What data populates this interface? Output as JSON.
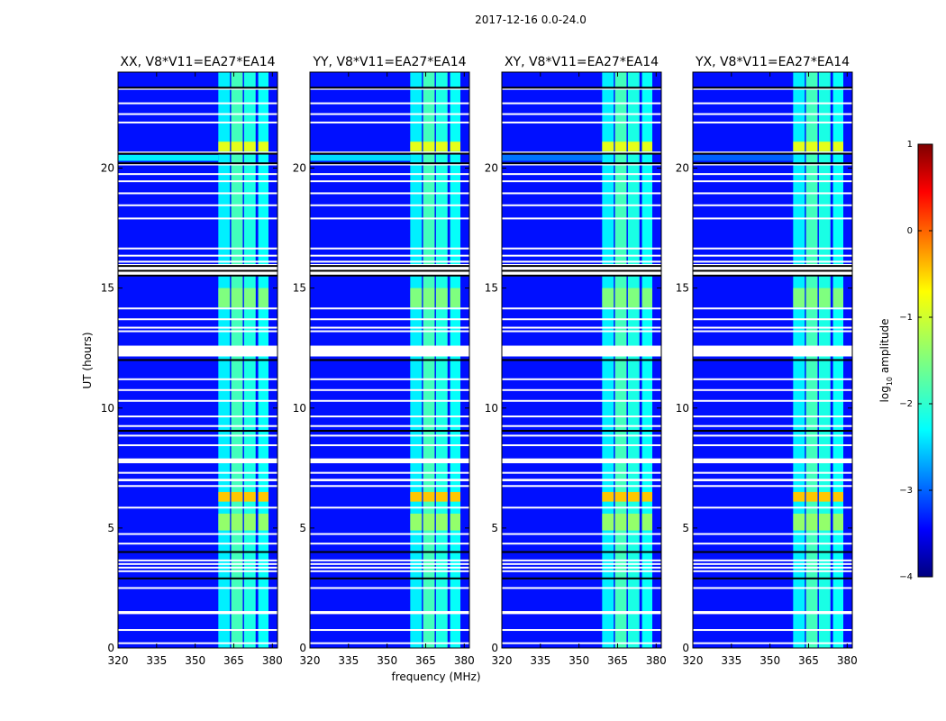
{
  "chart_data": {
    "type": "heatmap",
    "suptitle": "2017-12-16 0.0-24.0",
    "xlabel": "frequency (MHz)",
    "ylabel": "UT (hours)",
    "xlim": [
      320,
      382
    ],
    "ylim": [
      0,
      24
    ],
    "xticks": [
      320,
      335,
      350,
      365,
      380
    ],
    "yticks": [
      0,
      5,
      10,
      15,
      20
    ],
    "colorbar": {
      "label": "log10 amplitude",
      "label_text": "log",
      "label_sub": "10",
      "label_rest": " amplitude",
      "range": [
        -4,
        1
      ],
      "ticks": [
        1,
        0,
        -1,
        -2,
        -3,
        -4
      ],
      "tick_labels": [
        "1",
        "0",
        "−1",
        "−2",
        "−3",
        "−4"
      ],
      "colormap": "jet",
      "colors": [
        "#00007f",
        "#0000ff",
        "#007fff",
        "#00ffff",
        "#7fff7f",
        "#ffff00",
        "#ff7f00",
        "#ff0000",
        "#7f0000"
      ]
    },
    "background_level": -3.3,
    "rfi_bands": [
      {
        "name": "rfi-band-1",
        "f_start": 359,
        "f_end": 363.5,
        "level": -2.2
      },
      {
        "name": "rfi-band-2",
        "f_start": 364,
        "f_end": 368.5,
        "level": -1.8
      },
      {
        "name": "rfi-band-3",
        "f_start": 369,
        "f_end": 373.5,
        "level": -2.0
      },
      {
        "name": "rfi-band-4",
        "f_start": 374.5,
        "f_end": 378.5,
        "level": -2.1
      }
    ],
    "flagged_hours": [
      {
        "start": 12.15,
        "end": 12.6
      },
      {
        "start": 7.7,
        "end": 7.9
      },
      {
        "start": 6.95,
        "end": 7.05
      },
      {
        "start": 15.5,
        "end": 16.0
      }
    ],
    "high_hours": [
      {
        "start": 20.7,
        "end": 21.1,
        "level": -1.0
      },
      {
        "start": 14.2,
        "end": 15.0,
        "level": -1.5
      },
      {
        "start": 6.1,
        "end": 6.5,
        "level": -0.6
      },
      {
        "start": 4.9,
        "end": 5.6,
        "level": -1.4
      }
    ],
    "panels": [
      {
        "title": "XX, V8*V11=EA27*EA14",
        "fullrow_level": -2.2
      },
      {
        "title": "YY, V8*V11=EA27*EA14",
        "fullrow_level": -2.3
      },
      {
        "title": "XY, V8*V11=EA27*EA14",
        "fullrow_level": -2.8
      },
      {
        "title": "YX, V8*V11=EA27*EA14",
        "fullrow_level": -2.9
      }
    ]
  }
}
